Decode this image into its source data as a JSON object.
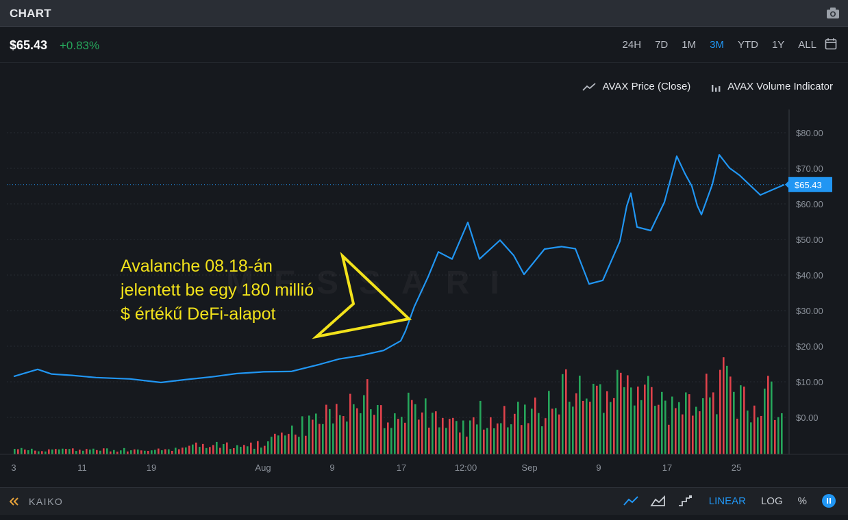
{
  "header": {
    "title": "CHART"
  },
  "price": {
    "value": "$65.43",
    "change": "+0.83%"
  },
  "ranges": [
    "24H",
    "7D",
    "1M",
    "3M",
    "YTD",
    "1Y",
    "ALL"
  ],
  "active_range": "3M",
  "legend": {
    "price_series": "AVAX Price (Close)",
    "volume_series": "AVAX Volume Indicator"
  },
  "annotation": "Avalanche 08.18-án\njelentett be egy 180 millió\n$ értékű DeFi-alapot",
  "watermark": "MESSARI",
  "footer": {
    "brand": "KAIKO",
    "scale_linear": "LINEAR",
    "scale_log": "LOG",
    "scale_pct": "%"
  },
  "colors": {
    "line": "#2196f3",
    "up": "#26a65b",
    "down": "#e0424b",
    "background": "#16191e",
    "annotation": "#f2e21b"
  },
  "chart_data": {
    "type": "line",
    "title": "",
    "y_ticks": [
      "$80.00",
      "$70.00",
      "$60.00",
      "$50.00",
      "$40.00",
      "$30.00",
      "$20.00",
      "$10.00",
      "$0.00"
    ],
    "x_ticks": [
      "3",
      "11",
      "19",
      "Aug",
      "9",
      "17",
      "12:00",
      "Sep",
      "9",
      "17",
      "25"
    ],
    "ylim": [
      0,
      80
    ],
    "current_price_label": "$65.43",
    "current_price": 65.43,
    "series": [
      {
        "name": "AVAX Price (Close)",
        "x": [
          "Jul 3",
          "Jul 6",
          "Jul 9",
          "Jul 12",
          "Jul 15",
          "Jul 18",
          "Jul 21",
          "Jul 24",
          "Jul 27",
          "Jul 30",
          "Aug 2",
          "Aug 5",
          "Aug 8",
          "Aug 11",
          "Aug 14",
          "Aug 16",
          "Aug 17",
          "Aug 18",
          "Aug 19",
          "Aug 20",
          "Aug 21",
          "Aug 22",
          "Aug 23",
          "Aug 24",
          "Aug 25",
          "Aug 26",
          "Aug 28",
          "Aug 30",
          "Sep 1",
          "Sep 3",
          "Sep 5",
          "Sep 7",
          "Sep 9",
          "Sep 11",
          "Sep 12",
          "Sep 13",
          "Sep 14",
          "Sep 16",
          "Sep 17",
          "Sep 18",
          "Sep 19",
          "Sep 20",
          "Sep 21",
          "Sep 22",
          "Sep 23",
          "Sep 24",
          "Sep 25",
          "Sep 27",
          "Sep 29"
        ],
        "values": [
          11.5,
          13.5,
          12.2,
          11.8,
          11.2,
          10.8,
          9.8,
          10.6,
          11.4,
          12.3,
          12.8,
          12.9,
          14.8,
          16.4,
          17.3,
          18.8,
          21.5,
          24.3,
          31.2,
          39.5,
          46.5,
          44.5,
          54.8,
          44.5,
          49.8,
          45.5,
          40.2,
          47.3,
          48.0,
          47.4,
          37.5,
          38.5,
          49.5,
          59.4,
          63.0,
          53.5,
          52.5,
          60.5,
          73.4,
          68.5,
          65.0,
          59.5,
          57.0,
          65.5,
          73.8,
          70.1,
          68.0,
          62.5,
          65.4
        ]
      },
      {
        "name": "AVAX Volume Indicator",
        "values": [
          1,
          1,
          1,
          1,
          1,
          1,
          1,
          1,
          1,
          1,
          1,
          2,
          2,
          2,
          2,
          2,
          3,
          5,
          7,
          8,
          9,
          10,
          12,
          10,
          9,
          11,
          8,
          7,
          6,
          9,
          8,
          8,
          10,
          9,
          12,
          16,
          11,
          12,
          18,
          15,
          14,
          11,
          10,
          13,
          16,
          14,
          10,
          13,
          8
        ]
      }
    ]
  }
}
